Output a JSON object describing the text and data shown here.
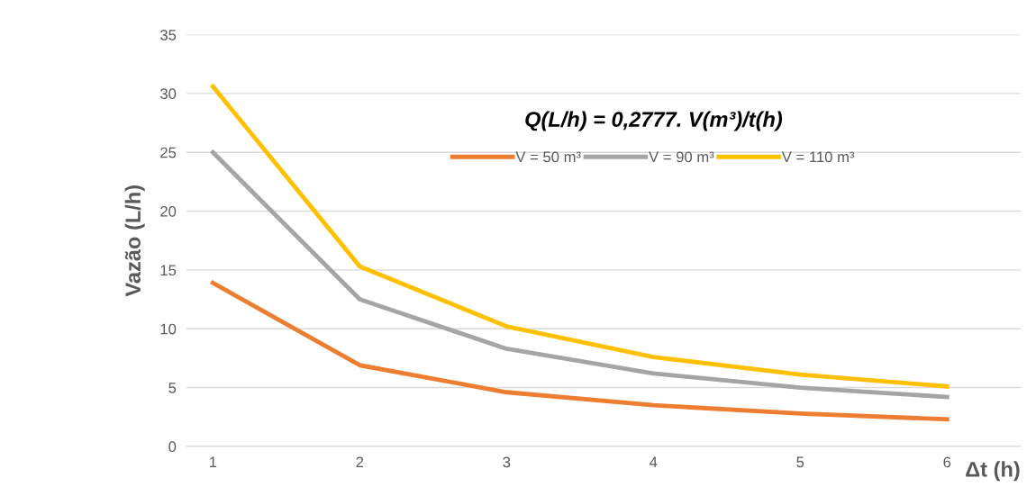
{
  "chart_data": {
    "type": "line",
    "title": "Q(L/h) = 0,2777. V(m³)/t(h)",
    "xlabel": "Δt (h)",
    "ylabel": "Vazão (L/h)",
    "categories": [
      "1",
      "2",
      "3",
      "4",
      "5",
      "6"
    ],
    "series": [
      {
        "name": "V = 50 m³",
        "color": "#ed7d31",
        "values": [
          13.9,
          6.9,
          4.6,
          3.5,
          2.8,
          2.3
        ]
      },
      {
        "name": "V = 90 m³",
        "color": "#a5a5a5",
        "values": [
          25.0,
          12.5,
          8.3,
          6.2,
          5.0,
          4.2
        ]
      },
      {
        "name": "V = 110 m³",
        "color": "#ffc000",
        "values": [
          30.6,
          15.3,
          10.2,
          7.6,
          6.1,
          5.1
        ]
      }
    ],
    "ylim": [
      0,
      35
    ],
    "yticks": [
      0,
      5,
      10,
      15,
      20,
      25,
      30,
      35
    ],
    "grid": "y",
    "legend": "top",
    "marker": "none",
    "line_style": "solid"
  }
}
